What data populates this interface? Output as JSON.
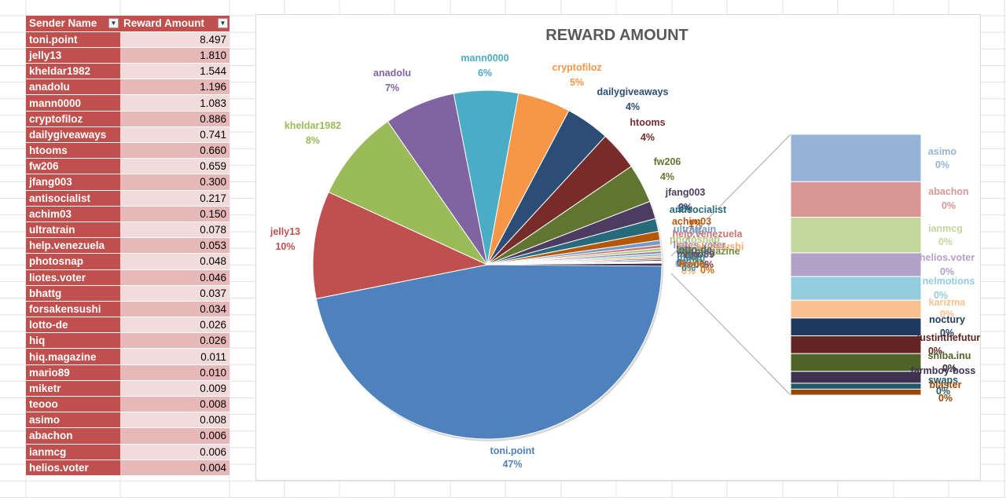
{
  "table": {
    "headers": [
      "Sender Name",
      "Reward Amount"
    ],
    "rows": [
      [
        "toni.point",
        "8.497"
      ],
      [
        "jelly13",
        "1.810"
      ],
      [
        "kheldar1982",
        "1.544"
      ],
      [
        "anadolu",
        "1.196"
      ],
      [
        "mann0000",
        "1.083"
      ],
      [
        "cryptofiloz",
        "0.886"
      ],
      [
        "dailygiveaways",
        "0.741"
      ],
      [
        "htooms",
        "0.660"
      ],
      [
        "fw206",
        "0.659"
      ],
      [
        "jfang003",
        "0.300"
      ],
      [
        "antisocialist",
        "0.217"
      ],
      [
        "achim03",
        "0.150"
      ],
      [
        "ultratrain",
        "0.078"
      ],
      [
        "help.venezuela",
        "0.053"
      ],
      [
        "photosnap",
        "0.048"
      ],
      [
        "liotes.voter",
        "0.046"
      ],
      [
        "bhattg",
        "0.037"
      ],
      [
        "forsakensushi",
        "0.034"
      ],
      [
        "lotto-de",
        "0.026"
      ],
      [
        "hiq",
        "0.026"
      ],
      [
        "hiq.magazine",
        "0.011"
      ],
      [
        "mario89",
        "0.010"
      ],
      [
        "miketr",
        "0.009"
      ],
      [
        "teooo",
        "0.008"
      ],
      [
        "asimo",
        "0.008"
      ],
      [
        "abachon",
        "0.006"
      ],
      [
        "ianmcg",
        "0.006"
      ],
      [
        "helios.voter",
        "0.004"
      ]
    ]
  },
  "chart_data": {
    "type": "pie",
    "title": "REWARD AMOUNT",
    "colors": [
      "#4f81bd",
      "#c0504d",
      "#9bbb59",
      "#8064a2",
      "#4bacc6",
      "#f79646",
      "#2c4d75",
      "#772c2a",
      "#5f7530",
      "#4d3b62",
      "#276a7c",
      "#b65708",
      "#729aca",
      "#cd7371",
      "#afc97a",
      "#9983b5",
      "#6fbdd1",
      "#f9ab6b",
      "#3a5f8c",
      "#8c3836",
      "#738b42",
      "#5b4a74",
      "#30819a",
      "#d06a0d",
      "#95b3d7",
      "#d99694",
      "#c3d69b",
      "#b3a2c7",
      "#93cddd",
      "#fac090",
      "#1f3a5f",
      "#632523",
      "#4f6228",
      "#3f3151",
      "#215968",
      "#974706"
    ],
    "slices": [
      {
        "label": "toni.point",
        "value": 8.497,
        "pct": "47%"
      },
      {
        "label": "jelly13",
        "value": 1.81,
        "pct": "10%"
      },
      {
        "label": "kheldar1982",
        "value": 1.544,
        "pct": "8%"
      },
      {
        "label": "anadolu",
        "value": 1.196,
        "pct": "7%"
      },
      {
        "label": "mann0000",
        "value": 1.083,
        "pct": "6%"
      },
      {
        "label": "cryptofiloz",
        "value": 0.886,
        "pct": "5%"
      },
      {
        "label": "dailygiveaways",
        "value": 0.741,
        "pct": "4%"
      },
      {
        "label": "htooms",
        "value": 0.66,
        "pct": "4%"
      },
      {
        "label": "fw206",
        "value": 0.659,
        "pct": "4%"
      },
      {
        "label": "jfang003",
        "value": 0.3,
        "pct": "2%"
      },
      {
        "label": "antisocialist",
        "value": 0.217,
        "pct": "1%"
      },
      {
        "label": "achim03",
        "value": 0.15,
        "pct": "1%"
      },
      {
        "label": "ultratrain",
        "value": 0.078,
        "pct": "0%"
      },
      {
        "label": "help.venezuela",
        "value": 0.053,
        "pct": "0%"
      },
      {
        "label": "photosnap",
        "value": 0.048,
        "pct": "0%"
      },
      {
        "label": "liotes.voter",
        "value": 0.046,
        "pct": "0%"
      },
      {
        "label": "bhattg",
        "value": 0.037,
        "pct": "0%"
      },
      {
        "label": "forsakensushi",
        "value": 0.034,
        "pct": "0%"
      },
      {
        "label": "lotto-de",
        "value": 0.026,
        "pct": "0%"
      },
      {
        "label": "hiq",
        "value": 0.026,
        "pct": "0%"
      },
      {
        "label": "hiq.magazine",
        "value": 0.011,
        "pct": "0%"
      },
      {
        "label": "mario89",
        "value": 0.01,
        "pct": "0%"
      },
      {
        "label": "miketr",
        "value": 0.009,
        "pct": "0%"
      },
      {
        "label": "teooo",
        "value": 0.008,
        "pct": "0%"
      }
    ],
    "secondary": [
      {
        "label": "asimo",
        "value": 0.008,
        "pct": "0%"
      },
      {
        "label": "abachon",
        "value": 0.006,
        "pct": "0%"
      },
      {
        "label": "ianmcg",
        "value": 0.006,
        "pct": "0%"
      },
      {
        "label": "helios.voter",
        "value": 0.004,
        "pct": "0%"
      },
      {
        "label": "nelmotions",
        "value": 0.004,
        "pct": "0%"
      },
      {
        "label": "karizma",
        "value": 0.003,
        "pct": "0%"
      },
      {
        "label": "noctury",
        "value": 0.003,
        "pct": "0%"
      },
      {
        "label": "justinthefutur",
        "value": 0.003,
        "pct": "0%"
      },
      {
        "label": "shiba.inu",
        "value": 0.003,
        "pct": "0%"
      },
      {
        "label": "farmboy-boss",
        "value": 0.002,
        "pct": "0%"
      },
      {
        "label": "swaps",
        "value": 0.001,
        "pct": "0%"
      },
      {
        "label": "blaster",
        "value": 0.001,
        "pct": "0%"
      }
    ]
  }
}
